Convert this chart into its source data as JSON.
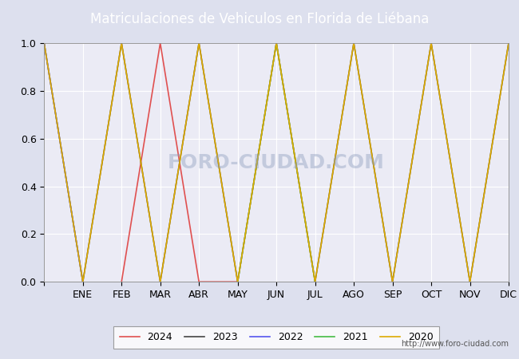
{
  "title": "Matriculaciones de Vehiculos en Florida de Liébana",
  "title_bg": "#5588bb",
  "months_labels": [
    "",
    "ENE",
    "FEB",
    "MAR",
    "ABR",
    "MAY",
    "JUN",
    "JUL",
    "AGO",
    "SEP",
    "OCT",
    "NOV",
    "DIC"
  ],
  "month_positions": [
    0,
    1,
    2,
    3,
    4,
    5,
    6,
    7,
    8,
    9,
    10,
    11,
    12
  ],
  "series": {
    "2024": {
      "color": "#e05050",
      "data_x": [
        2,
        2.5,
        3,
        3.5,
        4,
        4.5,
        5
      ],
      "data_y": [
        0,
        0.5,
        1,
        0.5,
        0,
        0,
        0
      ]
    },
    "2023": {
      "color": "#444444",
      "data_x": [
        0,
        0.5,
        1,
        1.5,
        2,
        2.5,
        3,
        3.5,
        4,
        4.5,
        5,
        5.5,
        6,
        6.5,
        7,
        7.5,
        8,
        8.5,
        9,
        9.5,
        10,
        10.5,
        11,
        11.5,
        12
      ],
      "data_y": [
        1,
        0.5,
        0,
        0.5,
        1,
        0.5,
        0,
        0.5,
        1,
        0.5,
        0,
        0.5,
        1,
        0.5,
        0,
        0.5,
        1,
        0.5,
        0,
        0.5,
        1,
        0.5,
        0,
        0.5,
        1
      ]
    },
    "2022": {
      "color": "#5555ee",
      "data_x": [
        0,
        1
      ],
      "data_y": [
        1,
        0
      ]
    },
    "2021": {
      "color": "#44bb44",
      "data_x": [
        5,
        6,
        7
      ],
      "data_y": [
        0,
        1,
        0
      ]
    },
    "2020": {
      "color": "#ddaa00",
      "data_x": [
        0,
        0.5,
        1,
        1.5,
        2,
        2.5,
        3,
        3.5,
        4,
        4.5,
        5,
        5.5,
        6,
        6.5,
        7,
        7.5,
        8,
        8.5,
        9,
        9.5,
        10,
        10.5,
        11,
        11.5,
        12
      ],
      "data_y": [
        1,
        0.5,
        0,
        0.5,
        1,
        0.5,
        0,
        0.5,
        1,
        0.5,
        0,
        0.5,
        1,
        0.5,
        0,
        0.5,
        1,
        0.5,
        0,
        0.5,
        1,
        0.5,
        0,
        0.5,
        1
      ]
    }
  },
  "legend_order": [
    "2024",
    "2023",
    "2022",
    "2021",
    "2020"
  ],
  "ylim": [
    0.0,
    1.0
  ],
  "xlim": [
    0,
    12
  ],
  "yticks": [
    0.0,
    0.2,
    0.4,
    0.6,
    0.8,
    1.0
  ],
  "background_color": "#dde0ee",
  "plot_bg": "#ebebf5",
  "watermark": "FORO-CIUDAD.COM",
  "url": "http://www.foro-ciudad.com",
  "grid_color": "#ffffff"
}
